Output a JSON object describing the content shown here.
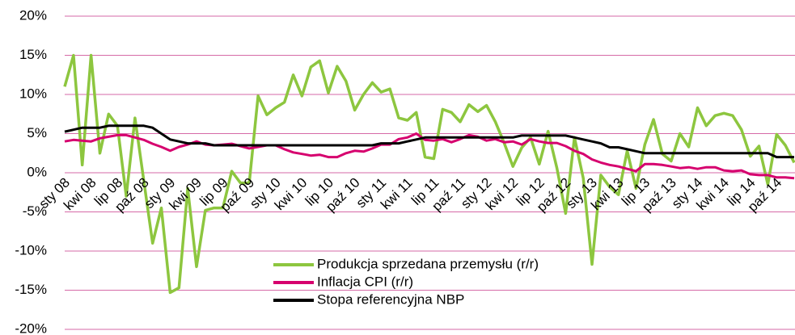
{
  "chart_data": {
    "type": "line",
    "categories": [
      "sty 08",
      null,
      null,
      "kwi 08",
      null,
      null,
      "lip 08",
      null,
      null,
      "paź 08",
      null,
      null,
      "sty 09",
      null,
      null,
      "kwi 09",
      null,
      null,
      "lip 09",
      null,
      null,
      "paź 09",
      null,
      null,
      "sty 10",
      null,
      null,
      "kwi 10",
      null,
      null,
      "lip 10",
      null,
      null,
      "paź 10",
      null,
      null,
      "sty 11",
      null,
      null,
      "kwi 11",
      null,
      null,
      "lip 11",
      null,
      null,
      "paź 11",
      null,
      null,
      "sty 12",
      null,
      null,
      "kwi 12",
      null,
      null,
      "lip 12",
      null,
      null,
      "paź 12",
      null,
      null,
      "sty 13",
      null,
      null,
      "kwi 13",
      null,
      null,
      "lip 13",
      null,
      null,
      "paź 13",
      null,
      null,
      "sty 14",
      null,
      null,
      "kwi 14",
      null,
      null,
      "lip 14",
      null,
      null,
      "paź 14",
      null,
      null
    ],
    "series": [
      {
        "name": "Produkcja sprzedana przemysłu (r/r)",
        "color": "#8dc63f",
        "values": [
          11,
          15,
          1,
          15,
          2.5,
          7.5,
          6,
          -3,
          7,
          -1,
          -9,
          -4.5,
          -15.3,
          -14.7,
          -2,
          -12,
          -4.8,
          -4.5,
          -4.5,
          0.2,
          -1.3,
          -1.3,
          9.8,
          7.4,
          8.3,
          9,
          12.5,
          9.8,
          13.5,
          14.3,
          10.2,
          13.6,
          11.7,
          8,
          10,
          11.5,
          10.3,
          10.7,
          7,
          6.7,
          7.7,
          2,
          1.8,
          8.1,
          7.7,
          6.5,
          8.7,
          7.8,
          8.6,
          6.5,
          3.8,
          0.8,
          3.2,
          4.5,
          1.1,
          5.3,
          0.6,
          -5.2,
          4.5,
          -0.7,
          -11.7,
          -0.3,
          -1.8,
          -2.8,
          2.8,
          -2,
          3.6,
          6.8,
          2.4,
          1.5,
          5,
          3.3,
          8.3,
          6,
          7.3,
          7.6,
          7.3,
          5.5,
          2.1,
          3.4,
          -1.5,
          4.9,
          3.5,
          1.3
        ]
      },
      {
        "name": "Inflacja CPI (r/r)",
        "color": "#d6006e",
        "values": [
          4,
          4.2,
          4.1,
          4,
          4.4,
          4.6,
          4.8,
          4.8,
          4.5,
          4.2,
          3.7,
          3.3,
          2.8,
          3.3,
          3.6,
          4,
          3.6,
          3.5,
          3.6,
          3.7,
          3.4,
          3.1,
          3.3,
          3.5,
          3.5,
          3,
          2.6,
          2.4,
          2.2,
          2.3,
          2,
          2,
          2.5,
          2.8,
          2.7,
          3.1,
          3.6,
          3.6,
          4.3,
          4.5,
          5,
          4.2,
          4.1,
          4.3,
          3.9,
          4.3,
          4.8,
          4.6,
          4.1,
          4.3,
          3.9,
          4,
          3.6,
          4.3,
          4,
          3.8,
          3.8,
          3.4,
          2.8,
          2.4,
          1.7,
          1.3,
          1,
          0.8,
          0.5,
          0.2,
          1.1,
          1.1,
          1,
          0.8,
          0.6,
          0.7,
          0.5,
          0.7,
          0.7,
          0.3,
          0.2,
          0.3,
          -0.2,
          -0.3,
          -0.3,
          -0.6,
          -0.6,
          -0.7
        ]
      },
      {
        "name": "Stopa referencyjna NBP",
        "color": "#000000",
        "values": [
          5.25,
          5.5,
          5.75,
          5.75,
          5.75,
          6,
          6,
          6,
          6,
          6,
          5.75,
          5,
          4.25,
          4,
          3.75,
          3.75,
          3.75,
          3.5,
          3.5,
          3.5,
          3.5,
          3.5,
          3.5,
          3.5,
          3.5,
          3.5,
          3.5,
          3.5,
          3.5,
          3.5,
          3.5,
          3.5,
          3.5,
          3.5,
          3.5,
          3.5,
          3.75,
          3.75,
          3.75,
          4,
          4.25,
          4.5,
          4.5,
          4.5,
          4.5,
          4.5,
          4.5,
          4.5,
          4.5,
          4.5,
          4.5,
          4.5,
          4.75,
          4.75,
          4.75,
          4.75,
          4.75,
          4.75,
          4.5,
          4.25,
          4,
          3.75,
          3.25,
          3.25,
          3,
          2.75,
          2.5,
          2.5,
          2.5,
          2.5,
          2.5,
          2.5,
          2.5,
          2.5,
          2.5,
          2.5,
          2.5,
          2.5,
          2.5,
          2.5,
          2.5,
          2,
          2,
          2
        ]
      }
    ],
    "ylim": [
      -20,
      20
    ],
    "yticks": [
      {
        "value": -20,
        "label": "-20%"
      },
      {
        "value": -15,
        "label": "-15%"
      },
      {
        "value": -10,
        "label": "-10%"
      },
      {
        "value": -5,
        "label": "-5%"
      },
      {
        "value": 0,
        "label": "0%"
      },
      {
        "value": 5,
        "label": "5%"
      },
      {
        "value": 10,
        "label": "10%"
      },
      {
        "value": 15,
        "label": "15%"
      },
      {
        "value": 20,
        "label": "20%"
      }
    ],
    "grid": true
  }
}
